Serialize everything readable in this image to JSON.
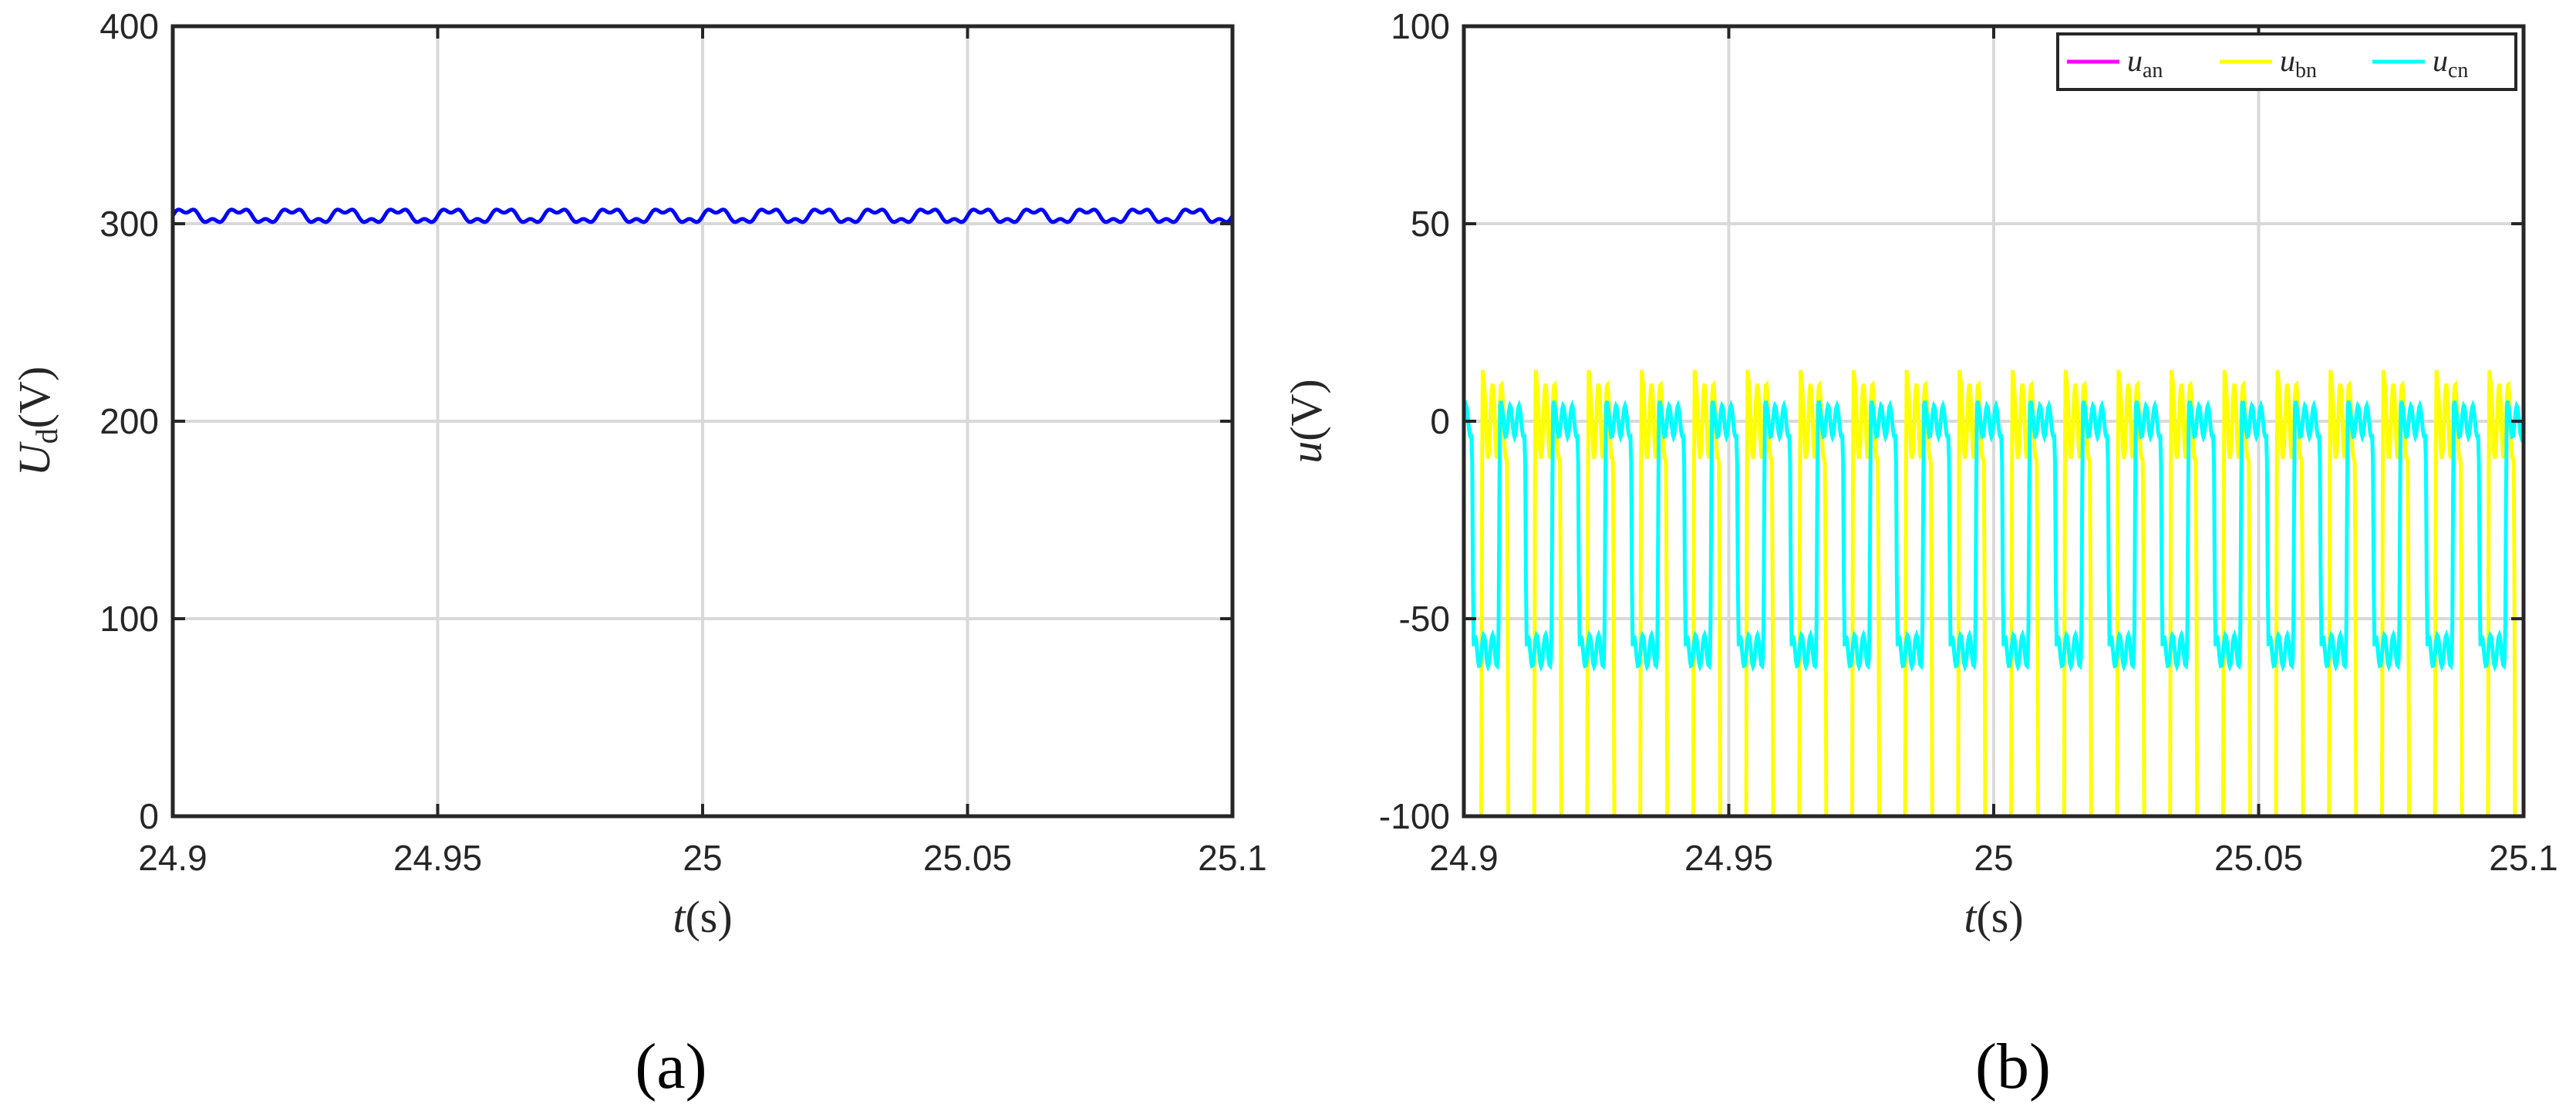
{
  "chart_data": [
    {
      "type": "line",
      "panel_caption": "(a)",
      "xlabel": {
        "symbol": "t",
        "unit": "(s)"
      },
      "ylabel": {
        "symbol": "U",
        "sub": "d",
        "unit": "(V)"
      },
      "xlim": [
        24.9,
        25.1
      ],
      "ylim": [
        0,
        400
      ],
      "xticks": [
        24.9,
        24.95,
        25.0,
        25.05,
        25.1
      ],
      "xtick_labels": [
        "24.9",
        "24.95",
        "25",
        "25.05",
        "25.1"
      ],
      "yticks": [
        0,
        100,
        200,
        300,
        400
      ],
      "ytick_labels": [
        "0",
        "100",
        "200",
        "300",
        "400"
      ],
      "grid": true,
      "legend": null,
      "series": [
        {
          "color": "#0000ff",
          "kind": "ripple",
          "mean": 304,
          "amplitude": 4,
          "period_s": 0.01
        }
      ]
    },
    {
      "type": "line",
      "panel_caption": "(b)",
      "xlabel": {
        "symbol": "t",
        "unit": "(s)"
      },
      "ylabel": {
        "symbol": "u",
        "unit": "(V)"
      },
      "xlim": [
        24.9,
        25.1
      ],
      "ylim": [
        -100,
        100
      ],
      "xticks": [
        24.9,
        24.95,
        25.0,
        25.05,
        25.1
      ],
      "xtick_labels": [
        "24.9",
        "24.95",
        "25",
        "25.05",
        "25.1"
      ],
      "yticks": [
        -100,
        -50,
        0,
        50,
        100
      ],
      "ytick_labels": [
        "-100",
        "-50",
        "0",
        "50",
        "100"
      ],
      "grid": true,
      "legend": {
        "placement": "top-right",
        "orientation": "horizontal"
      },
      "series": [
        {
          "name": "u",
          "sub": "an",
          "color": "#ff00ff",
          "kind": "six-step",
          "amplitude": 79,
          "period_s": 0.01,
          "phase_deg": 0,
          "visible": false
        },
        {
          "name": "u",
          "sub": "bn",
          "color": "#ffff00",
          "kind": "six-step",
          "amplitude": 79,
          "period_s": 0.01,
          "phase_deg": -120,
          "visible": true
        },
        {
          "name": "u",
          "sub": "cn",
          "color": "#00ffff",
          "kind": "six-step",
          "amplitude": 33,
          "period_s": 0.01,
          "phase_deg": 120,
          "visible": true
        }
      ]
    }
  ]
}
